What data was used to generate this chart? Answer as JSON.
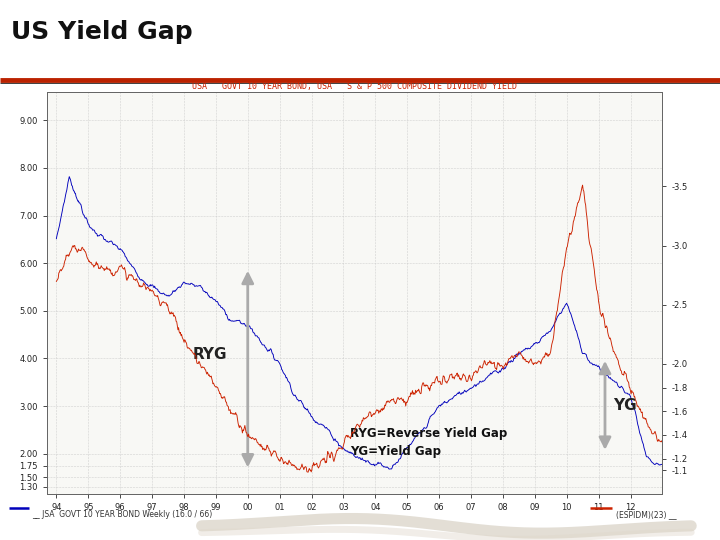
{
  "title": "US Yield Gap",
  "chart_title": "USA   GOVT 10 YEAR BOND, USA   S & P 500 COMPOSITE DIVIDEND YIELD",
  "title_fontsize": 18,
  "title_fontweight": "bold",
  "background_color": "#ffffff",
  "chart_bg": "#ffffff",
  "grid_color": "#c8c8c8",
  "x_labels": [
    "94",
    "95",
    "96",
    "97",
    "98",
    "99",
    "00",
    "01",
    "02",
    "03",
    "04",
    "05",
    "06",
    "07",
    "08",
    "09",
    "10",
    "11",
    "12"
  ],
  "left_y_ticks": [
    9.0,
    8.0,
    7.0,
    6.0,
    5.0,
    4.0,
    3.0,
    2.0,
    1.75,
    1.5,
    1.3
  ],
  "right_y_ticks": [
    3.5,
    3.0,
    2.5,
    2.0,
    1.8,
    1.6,
    1.4,
    1.2,
    1.1
  ],
  "right_y_labels": [
    "-3.5",
    "-3.0",
    "-2.5",
    "-2.0",
    "-1.8",
    "-1.6",
    "-1.4",
    "-1.2",
    "-1.1"
  ],
  "red_line_color": "#cc2200",
  "blue_line_color": "#0000bb",
  "arrow_color": "#aaaaaa",
  "separator_color": "#bb2200",
  "footer_left": "__ JSA  GOVT 10 YEAR BOND Weekly (16.0 / 66)",
  "footer_right": "(ESPIDM)(23) __",
  "swirl_color": "#ccc4b4"
}
